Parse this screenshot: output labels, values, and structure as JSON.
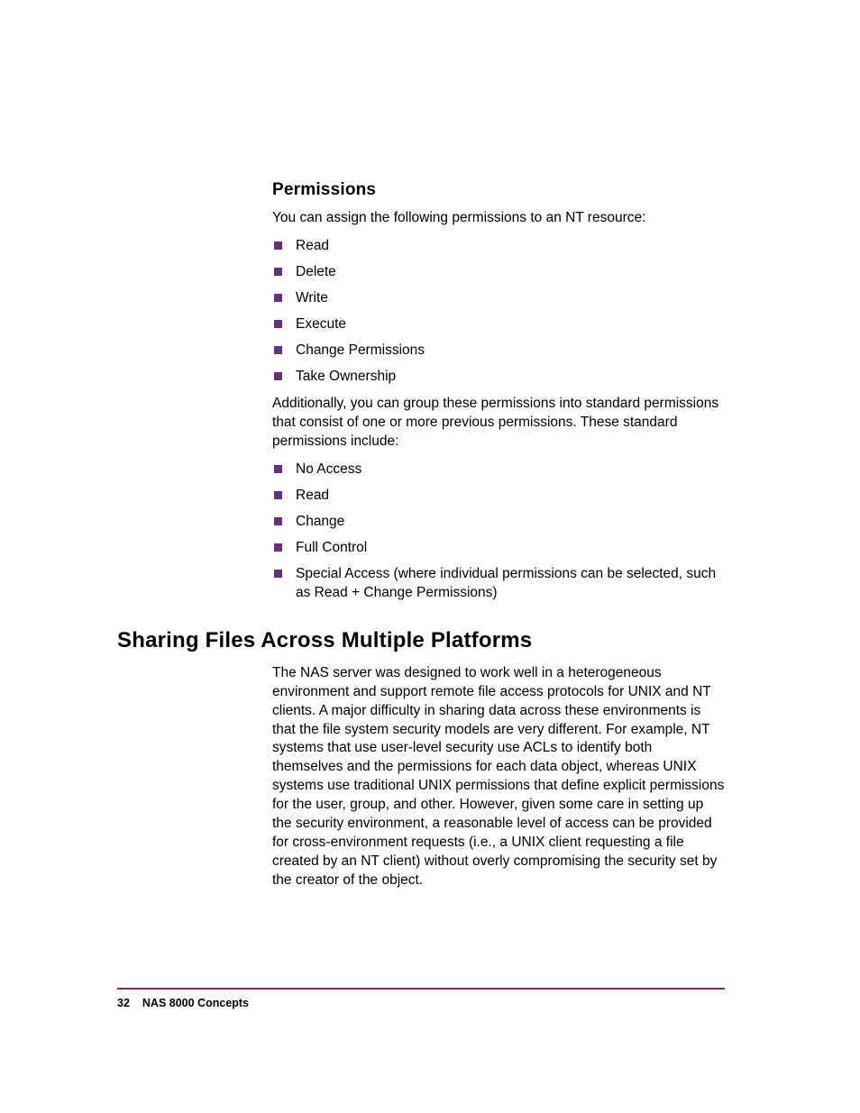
{
  "colors": {
    "bullet": "#6b2e86",
    "rule": "#8a1f7a",
    "text": "#000000",
    "background": "#ffffff"
  },
  "typography": {
    "body_size_pt": 12,
    "subheading_size_pt": 14,
    "heading_size_pt": 18,
    "footer_size_pt": 9,
    "font_family": "Futura / Century Gothic style sans-serif"
  },
  "section1": {
    "heading": "Permissions",
    "intro": "You can assign the following permissions to an NT resource:",
    "list1": [
      "Read",
      "Delete",
      "Write",
      "Execute",
      "Change Permissions",
      "Take Ownership"
    ],
    "para2": "Additionally, you can group these permissions into standard permissions that consist of one or more previous permissions. These standard permissions include:",
    "list2": [
      "No Access",
      "Read",
      "Change",
      "Full Control",
      "Special Access (where individual permissions can be selected, such as Read + Change Permissions)"
    ]
  },
  "section2": {
    "heading": "Sharing Files Across Multiple Platforms",
    "body": "The NAS server was designed to work well in a heterogeneous environment and support remote file access protocols for UNIX and NT clients. A major difficulty in sharing data across these environments is that the file system security models are very different. For example, NT systems that use user-level security use ACLs to identify both themselves and the permissions for each data object, whereas UNIX systems use traditional UNIX permissions that define explicit permissions for the user, group, and other. However, given some care in setting up the security environment, a reasonable level of access can be provided for cross-environment requests (i.e., a UNIX client requesting a file created by an NT client) without overly compromising the security set by the creator of the object."
  },
  "footer": {
    "page_number": "32",
    "doc_title": "NAS 8000 Concepts"
  }
}
